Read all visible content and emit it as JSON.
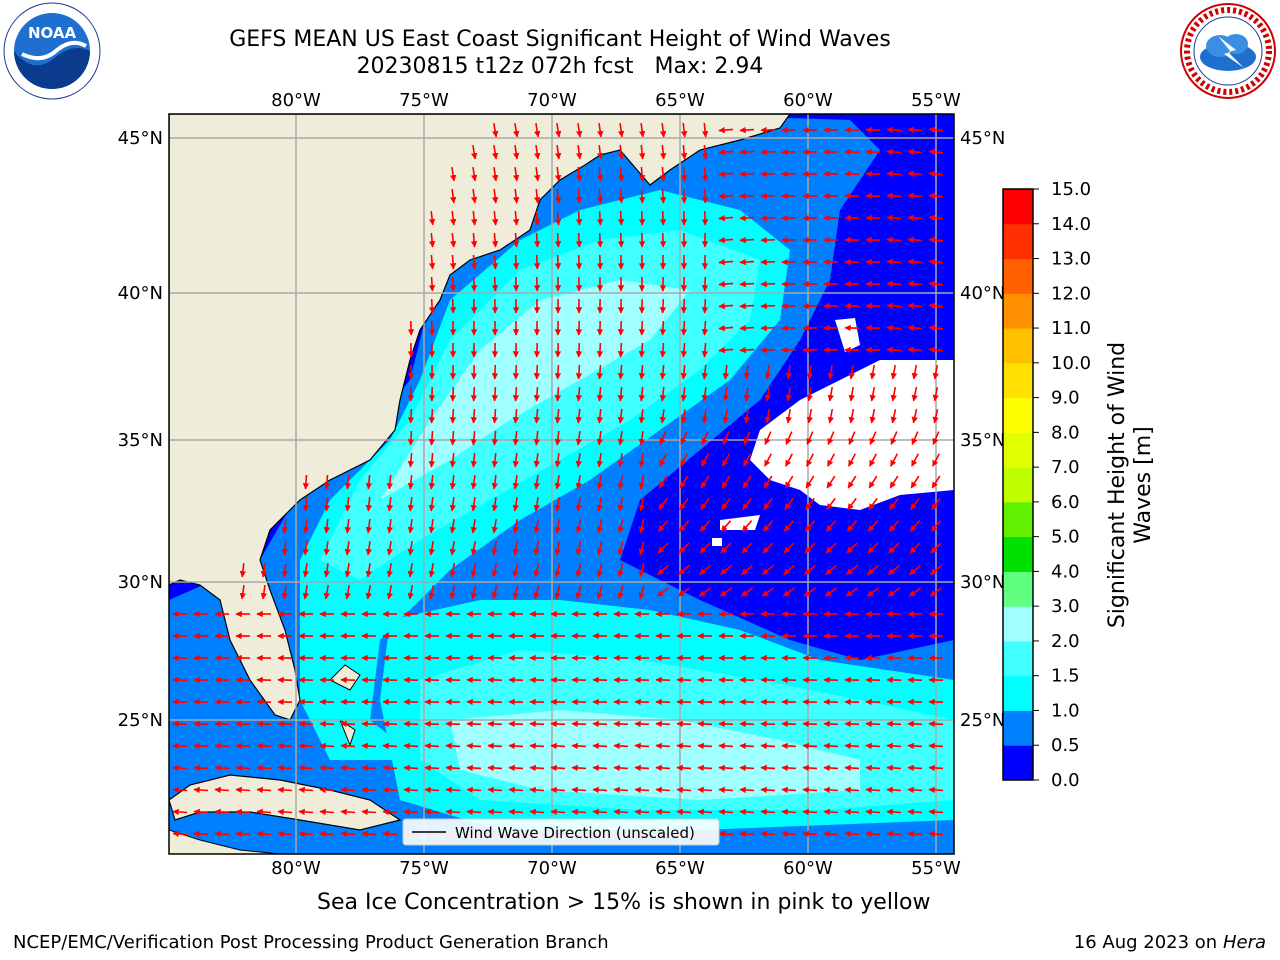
{
  "title": {
    "line1": "GEFS MEAN US East Coast Significant Height of Wind Waves",
    "line2": "20230815 t12z 072h fcst",
    "max_label": "Max: 2.94"
  },
  "logos": {
    "left": "NOAA",
    "left_icon": "noaa-logo-icon",
    "right_icon": "nws-logo-icon"
  },
  "map": {
    "lon_labels": [
      "80°W",
      "75°W",
      "70°W",
      "65°W",
      "60°W",
      "55°W"
    ],
    "lat_labels": [
      "45°N",
      "40°N",
      "35°N",
      "30°N",
      "25°N"
    ],
    "legend_label": "Wind Wave Direction (unscaled)",
    "colors": {
      "land": "#efedda",
      "ice_free_blank": "#ffffff",
      "arrow": "#ff0000"
    }
  },
  "colorbar": {
    "label_line1": "Significant Height of Wind",
    "label_line2": "Waves [m]",
    "ticks": [
      "0.0",
      "0.5",
      "1.0",
      "1.5",
      "2.0",
      "3.0",
      "4.0",
      "5.0",
      "6.0",
      "7.0",
      "8.0",
      "9.0",
      "10.0",
      "11.0",
      "12.0",
      "13.0",
      "14.0",
      "15.0"
    ],
    "colors": [
      "#0000ff",
      "#0080ff",
      "#00ffff",
      "#40ffff",
      "#a0ffff",
      "#60ff80",
      "#00e000",
      "#60f000",
      "#c0ff00",
      "#e0ff00",
      "#ffff00",
      "#ffe000",
      "#ffc000",
      "#ff9000",
      "#ff6000",
      "#ff3000",
      "#ff0000"
    ]
  },
  "footer": {
    "note": "Sea Ice Concentration > 15% is shown in pink to yellow",
    "left": "NCEP/EMC/Verification Post Processing Product Generation Branch",
    "date": "16 Aug 2023 on",
    "host": "Hera"
  }
}
